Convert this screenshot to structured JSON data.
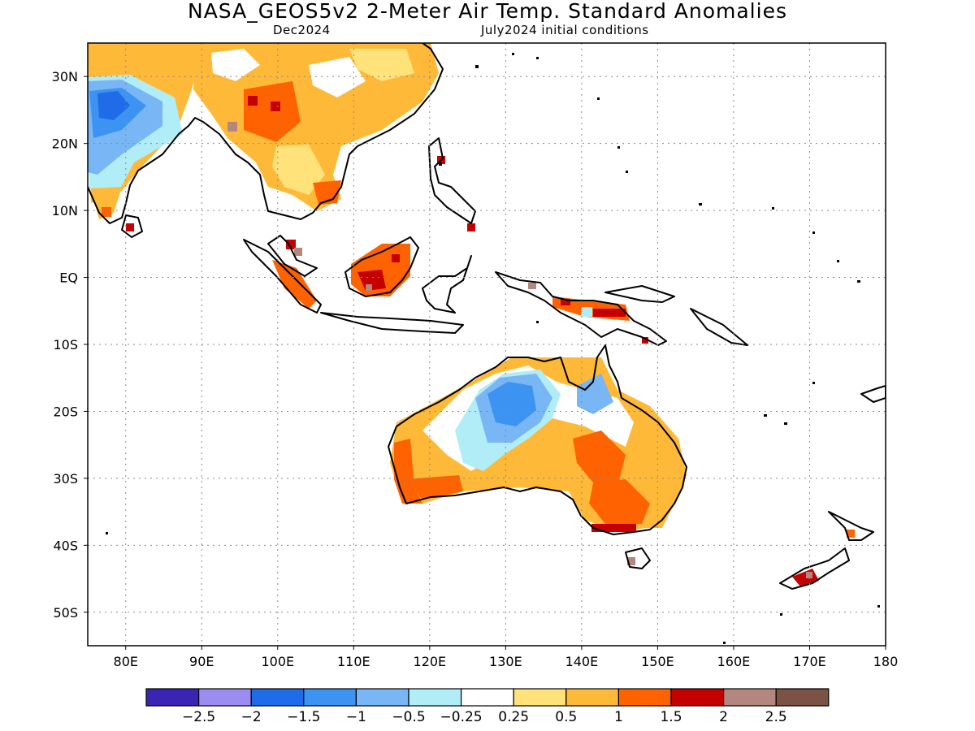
{
  "header": {
    "title": "NASA_GEOS5v2 2-Meter Air Temp. Standard Anomalies",
    "valid_month": "Dec2024",
    "init": "July2024 initial conditions"
  },
  "map": {
    "lon_range": [
      75,
      180
    ],
    "lat_range": [
      -55,
      35
    ],
    "lat_ticks": [
      {
        "v": 30,
        "label": "30N"
      },
      {
        "v": 20,
        "label": "20N"
      },
      {
        "v": 10,
        "label": "10N"
      },
      {
        "v": 0,
        "label": "EQ"
      },
      {
        "v": -10,
        "label": "10S"
      },
      {
        "v": -20,
        "label": "20S"
      },
      {
        "v": -30,
        "label": "30S"
      },
      {
        "v": -40,
        "label": "40S"
      },
      {
        "v": -50,
        "label": "50S"
      }
    ],
    "lon_ticks": [
      {
        "v": 80,
        "label": "80E"
      },
      {
        "v": 90,
        "label": "90E"
      },
      {
        "v": 100,
        "label": "100E"
      },
      {
        "v": 110,
        "label": "110E"
      },
      {
        "v": 120,
        "label": "120E"
      },
      {
        "v": 130,
        "label": "130E"
      },
      {
        "v": 140,
        "label": "140E"
      },
      {
        "v": 150,
        "label": "150E"
      },
      {
        "v": 160,
        "label": "160E"
      },
      {
        "v": 170,
        "label": "170E"
      },
      {
        "v": 180,
        "label": "180"
      }
    ],
    "grid": "dotted"
  },
  "colorbar": {
    "colors": [
      "#3a24b4",
      "#9b8cf2",
      "#1f6be8",
      "#3d93f2",
      "#78b6f5",
      "#b0edf7",
      "#ffffff",
      "#ffe27a",
      "#ffb938",
      "#ff6200",
      "#c40000",
      "#b3877d",
      "#7b5244"
    ],
    "labels": [
      "-2.5",
      "-2",
      "-1.5",
      "-1",
      "-0.5",
      "-0.25",
      "0.25",
      "0.5",
      "1",
      "1.5",
      "2",
      "2.5"
    ]
  }
}
